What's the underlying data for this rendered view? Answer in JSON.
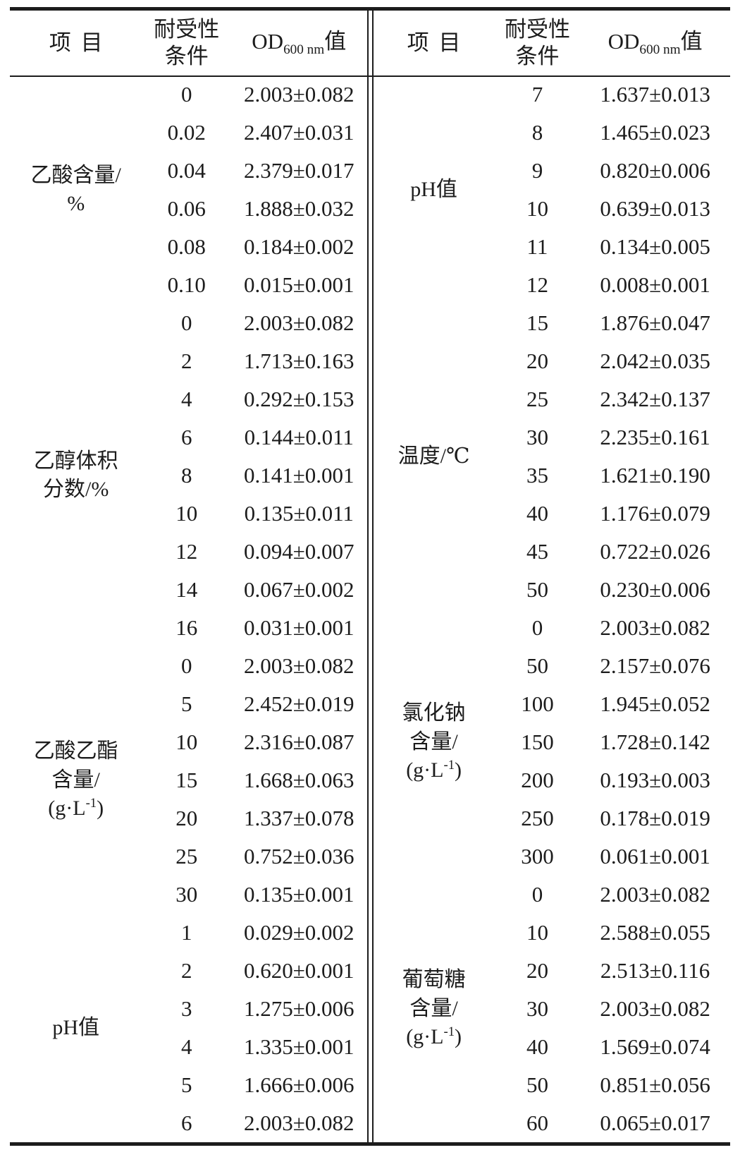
{
  "header": {
    "item": "项目",
    "condition_line1": "耐受性",
    "condition_line2": "条件",
    "od": {
      "pre": "OD",
      "sub": "600 nm",
      "post": "值"
    }
  },
  "left_groups": [
    {
      "id": "acetic-acid-content",
      "label_lines": [
        "乙酸含量/",
        "%"
      ],
      "rows": [
        [
          "0",
          "2.003±0.082"
        ],
        [
          "0.02",
          "2.407±0.031"
        ],
        [
          "0.04",
          "2.379±0.017"
        ],
        [
          "0.06",
          "1.888±0.032"
        ],
        [
          "0.08",
          "0.184±0.002"
        ],
        [
          "0.10",
          "0.015±0.001"
        ]
      ]
    },
    {
      "id": "ethanol-volume-fraction",
      "label_lines": [
        "乙醇体积",
        "分数/%"
      ],
      "rows": [
        [
          "0",
          "2.003±0.082"
        ],
        [
          "2",
          "1.713±0.163"
        ],
        [
          "4",
          "0.292±0.153"
        ],
        [
          "6",
          "0.144±0.011"
        ],
        [
          "8",
          "0.141±0.001"
        ],
        [
          "10",
          "0.135±0.011"
        ],
        [
          "12",
          "0.094±0.007"
        ],
        [
          "14",
          "0.067±0.002"
        ],
        [
          "16",
          "0.031±0.001"
        ]
      ]
    },
    {
      "id": "ethyl-acetate-content",
      "label_lines": [
        "乙酸乙酯",
        "含量/",
        {
          "pre": "(g·L",
          "sup": "-1",
          "post": ")"
        }
      ],
      "rows": [
        [
          "0",
          "2.003±0.082"
        ],
        [
          "5",
          "2.452±0.019"
        ],
        [
          "10",
          "2.316±0.087"
        ],
        [
          "15",
          "1.668±0.063"
        ],
        [
          "20",
          "1.337±0.078"
        ],
        [
          "25",
          "0.752±0.036"
        ],
        [
          "30",
          "0.135±0.001"
        ]
      ]
    },
    {
      "id": "ph-value-left",
      "label_lines": [
        "pH值"
      ],
      "rows": [
        [
          "1",
          "0.029±0.002"
        ],
        [
          "2",
          "0.620±0.001"
        ],
        [
          "3",
          "1.275±0.006"
        ],
        [
          "4",
          "1.335±0.001"
        ],
        [
          "5",
          "1.666±0.006"
        ],
        [
          "6",
          "2.003±0.082"
        ]
      ]
    }
  ],
  "right_groups": [
    {
      "id": "ph-value-right",
      "label_lines": [
        "pH值"
      ],
      "rows": [
        [
          "7",
          "1.637±0.013"
        ],
        [
          "8",
          "1.465±0.023"
        ],
        [
          "9",
          "0.820±0.006"
        ],
        [
          "10",
          "0.639±0.013"
        ],
        [
          "11",
          "0.134±0.005"
        ],
        [
          "12",
          "0.008±0.001"
        ]
      ]
    },
    {
      "id": "temperature",
      "label_lines": [
        "温度/℃"
      ],
      "rows": [
        [
          "15",
          "1.876±0.047"
        ],
        [
          "20",
          "2.042±0.035"
        ],
        [
          "25",
          "2.342±0.137"
        ],
        [
          "30",
          "2.235±0.161"
        ],
        [
          "35",
          "1.621±0.190"
        ],
        [
          "40",
          "1.176±0.079"
        ],
        [
          "45",
          "0.722±0.026"
        ],
        [
          "50",
          "0.230±0.006"
        ]
      ]
    },
    {
      "id": "sodium-chloride-content",
      "label_lines": [
        "氯化钠",
        "含量/",
        {
          "pre": "(g·L",
          "sup": "-1",
          "post": ")"
        }
      ],
      "rows": [
        [
          "0",
          "2.003±0.082"
        ],
        [
          "50",
          "2.157±0.076"
        ],
        [
          "100",
          "1.945±0.052"
        ],
        [
          "150",
          "1.728±0.142"
        ],
        [
          "200",
          "0.193±0.003"
        ],
        [
          "250",
          "0.178±0.019"
        ],
        [
          "300",
          "0.061±0.001"
        ]
      ]
    },
    {
      "id": "glucose-content",
      "label_lines": [
        "葡萄糖",
        "含量/",
        {
          "pre": "(g·L",
          "sup": "-1",
          "post": ")"
        }
      ],
      "rows": [
        [
          "0",
          "2.003±0.082"
        ],
        [
          "10",
          "2.588±0.055"
        ],
        [
          "20",
          "2.513±0.116"
        ],
        [
          "30",
          "2.003±0.082"
        ],
        [
          "40",
          "1.569±0.074"
        ],
        [
          "50",
          "0.851±0.056"
        ],
        [
          "60",
          "0.065±0.017"
        ]
      ]
    }
  ],
  "colors": {
    "text": "#1c1c1c",
    "background": "#ffffff",
    "rule": "#1c1c1c"
  }
}
